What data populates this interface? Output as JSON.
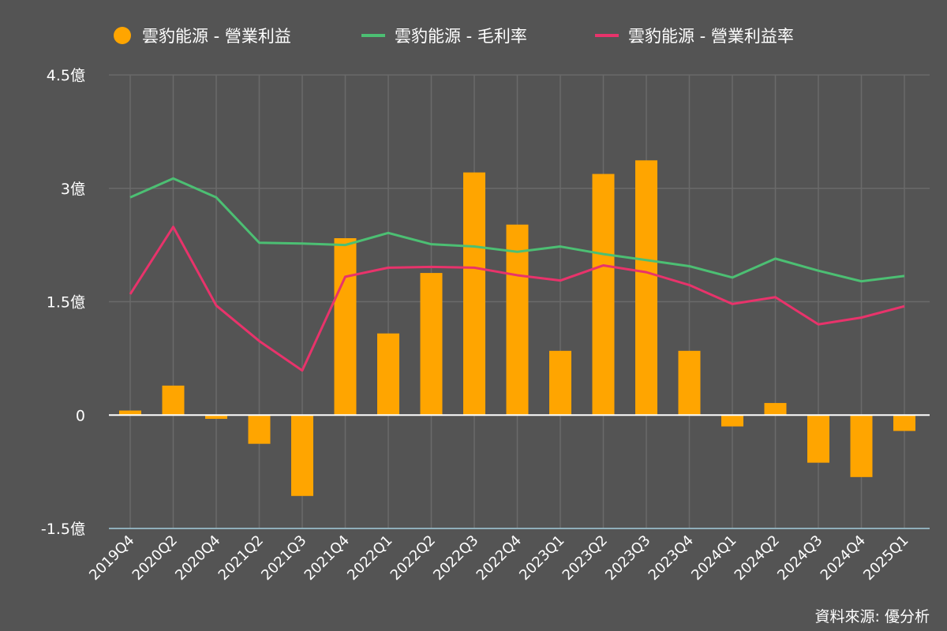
{
  "legend": {
    "op_income": "雲豹能源 - 營業利益",
    "gross_margin": "雲豹能源 - 毛利率",
    "op_margin": "雲豹能源 - 營業利益率"
  },
  "source": "資料來源: 優分析",
  "colors": {
    "background": "#545454",
    "bar": "#FFA500",
    "gross_margin": "#4CBF73",
    "op_margin": "#E8336B",
    "grid": "#6a6a6a",
    "zero_line": "#ffffff",
    "baseline": "#9fc8d8"
  },
  "chart_data": {
    "type": "bar+line",
    "categories": [
      "2019Q4",
      "2020Q2",
      "2020Q4",
      "2021Q2",
      "2021Q3",
      "2021Q4",
      "2022Q1",
      "2022Q2",
      "2022Q3",
      "2022Q4",
      "2023Q1",
      "2023Q2",
      "2023Q3",
      "2023Q4",
      "2024Q1",
      "2024Q2",
      "2024Q3",
      "2024Q4",
      "2025Q1"
    ],
    "y_ticks": [
      "4.5億",
      "3億",
      "1.5億",
      "0",
      "-1.5億"
    ],
    "y_tick_values": [
      4.5,
      3,
      1.5,
      0,
      -1.5
    ],
    "ylim": [
      -1.5,
      4.5
    ],
    "y_unit": "億",
    "grid": true,
    "legend_position": "top",
    "series": [
      {
        "name": "雲豹能源 - 營業利益",
        "type": "bar",
        "values": [
          0.06,
          0.39,
          -0.05,
          -0.38,
          -1.07,
          2.34,
          1.08,
          1.88,
          3.21,
          2.52,
          0.85,
          3.19,
          3.37,
          0.85,
          -0.15,
          0.16,
          -0.63,
          -0.82,
          -0.21
        ]
      },
      {
        "name": "雲豹能源 - 毛利率",
        "type": "line",
        "values": [
          2.88,
          3.13,
          2.88,
          2.28,
          2.27,
          2.25,
          2.41,
          2.26,
          2.23,
          2.16,
          2.23,
          2.13,
          2.05,
          1.97,
          1.82,
          2.07,
          1.91,
          1.77,
          1.84
        ]
      },
      {
        "name": "雲豹能源 - 營業利益率",
        "type": "line",
        "values": [
          1.6,
          2.49,
          1.45,
          0.98,
          0.59,
          1.83,
          1.95,
          1.96,
          1.95,
          1.85,
          1.78,
          1.98,
          1.89,
          1.72,
          1.47,
          1.56,
          1.2,
          1.29,
          1.44
        ]
      }
    ]
  }
}
